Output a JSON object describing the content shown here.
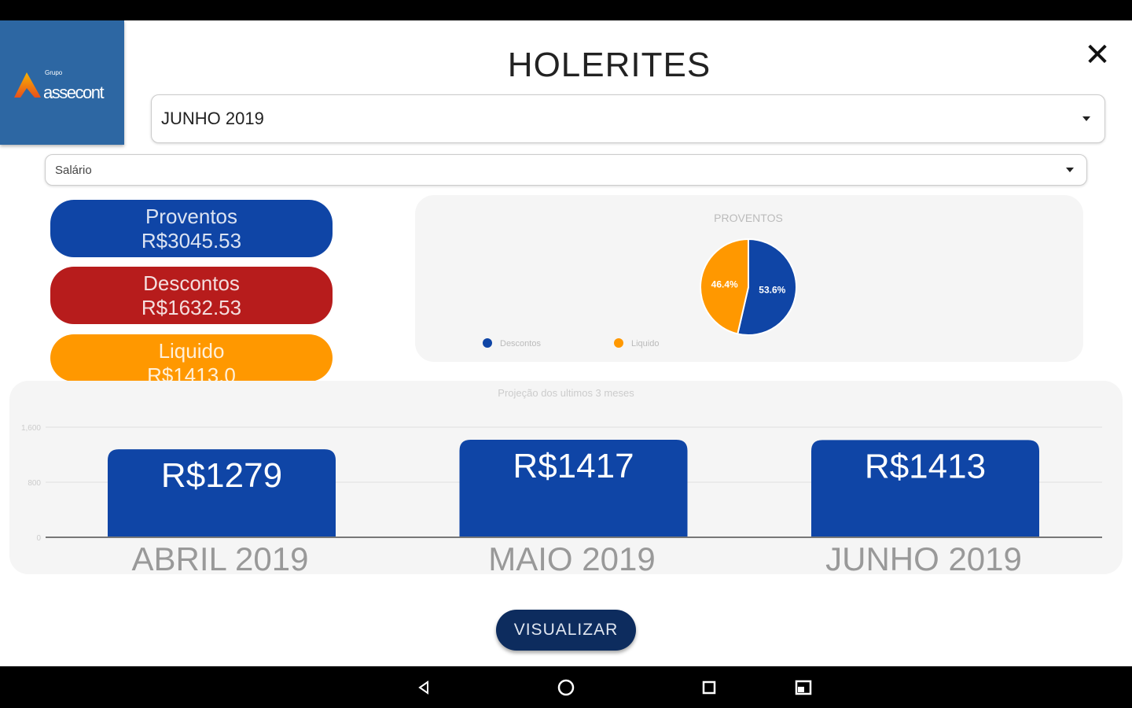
{
  "app": {
    "logo_text": "assecont",
    "logo_small": "Grupo",
    "title": "HOLERITES",
    "close_icon": "close-icon"
  },
  "filters": {
    "month": "JUNHO 2019",
    "type": "Salário"
  },
  "cards": [
    {
      "label": "Proventos",
      "value": "R$3045.53"
    },
    {
      "label": "Descontos",
      "value": "R$1632.53"
    },
    {
      "label": "Liquido",
      "value": "R$1413.0"
    }
  ],
  "colors": {
    "blue": "#0f45a6",
    "red": "#b71c1c",
    "orange": "#ff9800",
    "navy": "#0d2c5e"
  },
  "chart_data": [
    {
      "type": "pie",
      "title": "PROVENTOS",
      "slices": [
        {
          "name": "Descontos",
          "value": 53.6,
          "label": "53.6%",
          "color": "#0f45a6"
        },
        {
          "name": "Liquido",
          "value": 46.4,
          "label": "46.4%",
          "color": "#ff9800"
        }
      ],
      "legend": [
        "Descontos",
        "Liquido"
      ],
      "legend_position": "bottom-left"
    },
    {
      "type": "bar",
      "title": "Projeção dos ultimos 3 meses",
      "categories": [
        "ABRIL 2019",
        "MAIO 2019",
        "JUNHO 2019"
      ],
      "values": [
        1279,
        1417,
        1413
      ],
      "labels": [
        "R$1279",
        "R$1417",
        "R$1413"
      ],
      "yticks": [
        "0",
        "800",
        "1,600"
      ],
      "ytick_values": [
        0,
        800,
        1600
      ],
      "ylim": [
        0,
        1600
      ],
      "grid": true
    }
  ],
  "actions": {
    "visualizar": "VISUALIZAR"
  }
}
